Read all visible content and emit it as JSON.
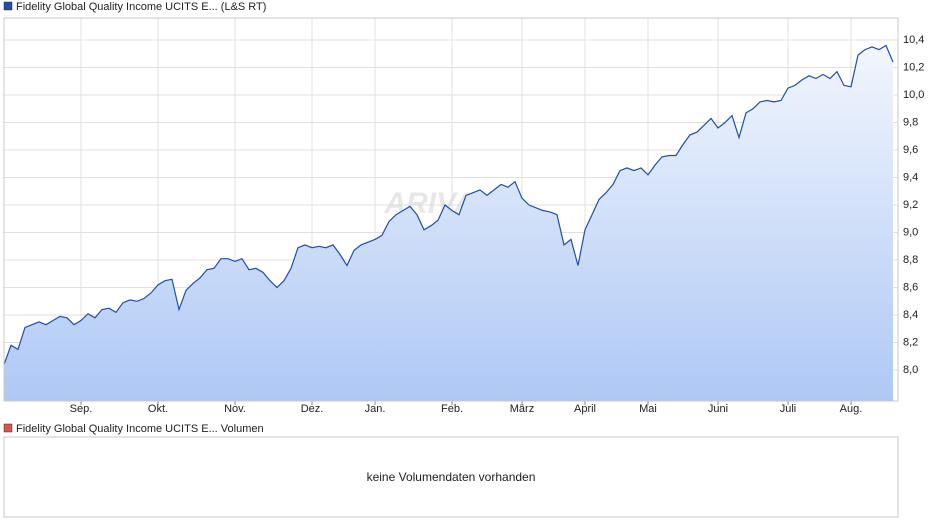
{
  "chart_data": [
    {
      "type": "area",
      "series": [
        {
          "name": "Fidelity Global Quality Income UCITS E... (L&S RT)",
          "color": "#1f4fa8",
          "values": [
            8.04,
            8.18,
            8.15,
            8.31,
            8.33,
            8.35,
            8.33,
            8.36,
            8.39,
            8.38,
            8.33,
            8.36,
            8.41,
            8.38,
            8.44,
            8.45,
            8.42,
            8.49,
            8.51,
            8.5,
            8.52,
            8.56,
            8.62,
            8.65,
            8.66,
            8.44,
            8.58,
            8.63,
            8.67,
            8.73,
            8.74,
            8.81,
            8.81,
            8.79,
            8.81,
            8.73,
            8.74,
            8.71,
            8.65,
            8.6,
            8.65,
            8.74,
            8.89,
            8.91,
            8.89,
            8.9,
            8.89,
            8.91,
            8.84,
            8.76,
            8.87,
            8.91,
            8.93,
            8.95,
            8.98,
            9.08,
            9.13,
            9.16,
            9.19,
            9.13,
            9.02,
            9.05,
            9.09,
            9.2,
            9.16,
            9.13,
            9.27,
            9.29,
            9.31,
            9.27,
            9.31,
            9.35,
            9.33,
            9.37,
            9.25,
            9.2,
            9.18,
            9.16,
            9.15,
            9.13,
            8.91,
            8.95,
            8.76,
            9.02,
            9.13,
            9.24,
            9.29,
            9.35,
            9.45,
            9.47,
            9.45,
            9.47,
            9.42,
            9.49,
            9.55,
            9.56,
            9.56,
            9.64,
            9.71,
            9.73,
            9.78,
            9.83,
            9.76,
            9.8,
            9.85,
            9.69,
            9.87,
            9.9,
            9.95,
            9.96,
            9.95,
            9.96,
            10.05,
            10.07,
            10.11,
            10.14,
            10.12,
            10.15,
            10.12,
            10.17,
            10.07,
            10.06,
            10.29,
            10.33,
            10.35,
            10.33,
            10.36,
            10.24
          ]
        }
      ],
      "categories": [
        null,
        null,
        null,
        null,
        null,
        null,
        null,
        null,
        null,
        null,
        null,
        "Sep.",
        null,
        null,
        null,
        null,
        null,
        null,
        null,
        null,
        null,
        null,
        "Okt.",
        null,
        null,
        null,
        null,
        null,
        null,
        null,
        null,
        null,
        null,
        "Nov.",
        null,
        null,
        null,
        null,
        null,
        null,
        null,
        null,
        null,
        null,
        "Dez.",
        null,
        null,
        null,
        null,
        null,
        null,
        null,
        null,
        "Jan.",
        null,
        null,
        null,
        null,
        null,
        null,
        null,
        null,
        null,
        null,
        "Feb.",
        null,
        null,
        null,
        null,
        null,
        null,
        null,
        null,
        null,
        "März",
        null,
        null,
        null,
        null,
        null,
        null,
        null,
        null,
        "April",
        null,
        null,
        null,
        null,
        null,
        null,
        null,
        null,
        "Mai",
        null,
        null,
        null,
        null,
        null,
        null,
        null,
        null,
        null,
        "Juni",
        null,
        null,
        null,
        null,
        null,
        null,
        null,
        null,
        null,
        "Juli",
        null,
        null,
        null,
        null,
        null,
        null,
        null,
        null,
        "Aug.",
        null,
        null,
        null,
        null,
        null,
        null
      ],
      "ylim": [
        7.775,
        10.56
      ],
      "yticks": [
        {
          "value": 8.0,
          "label": "8,0"
        },
        {
          "value": 8.2,
          "label": "8,2"
        },
        {
          "value": 8.4,
          "label": "8,4"
        },
        {
          "value": 8.6,
          "label": "8,6"
        },
        {
          "value": 8.8,
          "label": "8,8"
        },
        {
          "value": 9.0,
          "label": "9,0"
        },
        {
          "value": 9.2,
          "label": "9,2"
        },
        {
          "value": 9.4,
          "label": "9,4"
        },
        {
          "value": 9.6,
          "label": "9,6"
        },
        {
          "value": 9.8,
          "label": "9,8"
        },
        {
          "value": 10.0,
          "label": "10,0"
        },
        {
          "value": 10.2,
          "label": "10,2"
        },
        {
          "value": 10.4,
          "label": "10,4"
        }
      ],
      "grid": true,
      "watermark": "ARIVA"
    },
    {
      "type": "bar",
      "series": [
        {
          "name": "Fidelity Global Quality Income UCITS E... Volumen",
          "color": "#d9534f"
        }
      ],
      "annotation": "keine Volumendaten vorhanden"
    }
  ]
}
